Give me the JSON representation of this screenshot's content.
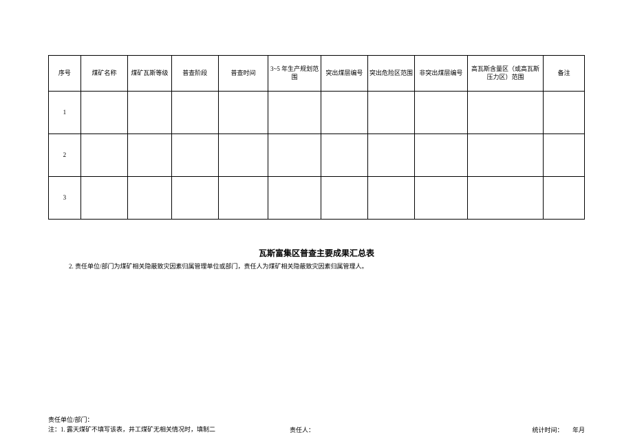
{
  "table": {
    "headers": {
      "seq": "序号",
      "name": "煤矿名称",
      "grade": "煤矿瓦斯等级",
      "phase": "普查阶段",
      "time": "普查时间",
      "plan": "3~5 年生产规划范围",
      "burst": "突出煤层编号",
      "danger": "突出危险区范围",
      "nonburst": "非突出煤层编号",
      "highgas": "高瓦斯含量区（或高瓦斯压力区）范围",
      "remark": "备注"
    },
    "rows": [
      "1",
      "2",
      "3"
    ]
  },
  "title": "瓦斯富集区普查主要成果汇总表",
  "note2": "2. 责任单位/部门为煤矿相关隐蔽致灾因素归属管理单位或部门，责任人为煤矿相关隐蔽致灾因素归属管理人。",
  "footer": {
    "unit": "责任单位/部门：",
    "note1": "注：1. 露天煤矿不填写该表，井工煤矿无相关情况时，填制二",
    "person": "责任人：",
    "stattime": "统计时间：",
    "date": "年月"
  }
}
